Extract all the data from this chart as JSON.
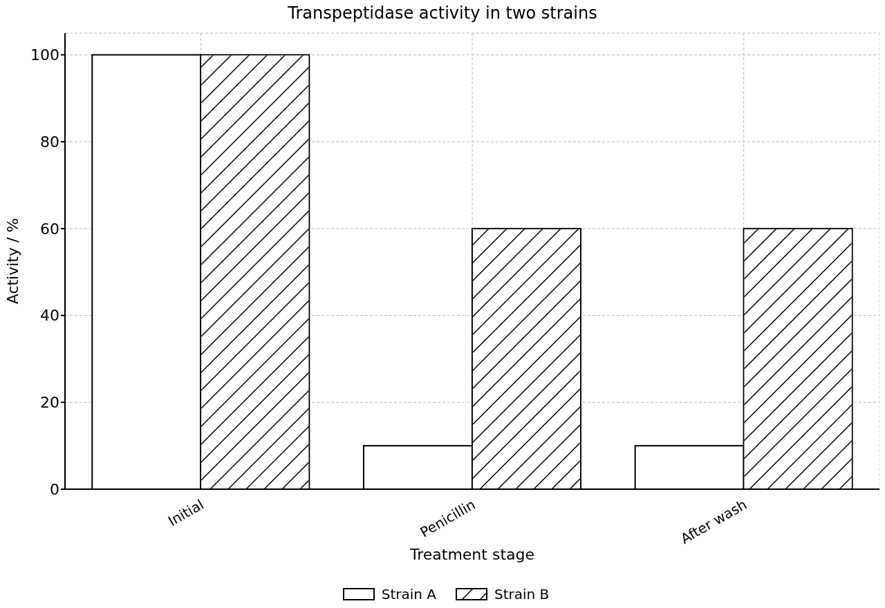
{
  "chart_data": {
    "type": "bar",
    "title": "Transpeptidase activity in two strains",
    "xlabel": "Treatment stage",
    "ylabel": "Activity / %",
    "categories": [
      "Initial",
      "Penicillin",
      "After wash"
    ],
    "series": [
      {
        "name": "Strain A",
        "color": "#ffffff",
        "values": [
          100,
          10,
          10
        ]
      },
      {
        "name": "Strain B",
        "color": "#ffffff",
        "values": [
          100,
          60,
          60
        ]
      }
    ],
    "ylim": [
      0,
      105
    ],
    "yticks": [
      0,
      20,
      40,
      60,
      80,
      100
    ],
    "grid": true,
    "legend": "bottom"
  }
}
